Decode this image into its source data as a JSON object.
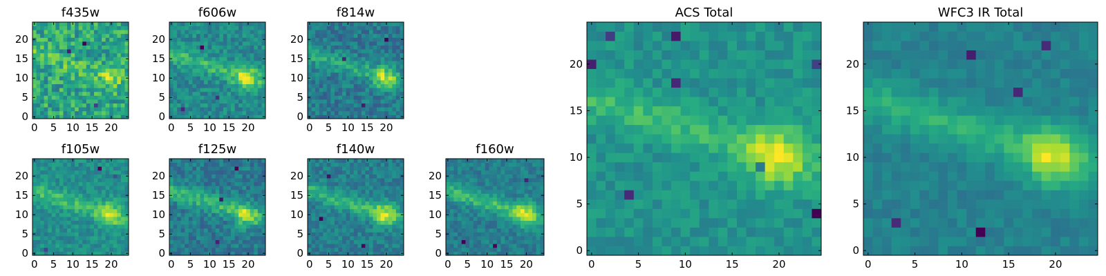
{
  "colormap": "viridis",
  "chart_data": [
    {
      "type": "heatmap",
      "title": "f435w",
      "grid": 25,
      "xticks": [
        0,
        5,
        10,
        15,
        20
      ],
      "yticks": [
        0,
        5,
        10,
        15,
        20
      ],
      "seed": 11,
      "noise": 0.62,
      "band_amp": 0.18,
      "blob_amp": 0.22,
      "hot_pixels": [
        [
          9,
          17,
          -0.9
        ],
        [
          13,
          19,
          -0.7
        ],
        [
          16,
          3,
          -0.6
        ]
      ]
    },
    {
      "type": "heatmap",
      "title": "f606w",
      "grid": 25,
      "xticks": [
        0,
        5,
        10,
        15,
        20
      ],
      "yticks": [
        0,
        5,
        10,
        15,
        20
      ],
      "seed": 23,
      "noise": 0.42,
      "band_amp": 0.35,
      "blob_amp": 0.55,
      "hot_pixels": [
        [
          8,
          18,
          -0.8
        ],
        [
          12,
          5,
          -0.6
        ],
        [
          3,
          2,
          -0.6
        ]
      ]
    },
    {
      "type": "heatmap",
      "title": "f814w",
      "grid": 25,
      "xticks": [
        0,
        5,
        10,
        15,
        20
      ],
      "yticks": [
        0,
        5,
        10,
        15,
        20
      ],
      "seed": 37,
      "noise": 0.42,
      "band_amp": 0.32,
      "blob_amp": 0.62,
      "hot_pixels": [
        [
          9,
          15,
          -0.7
        ],
        [
          14,
          3,
          -0.6
        ],
        [
          20,
          20,
          -0.5
        ]
      ]
    },
    {
      "type": "heatmap",
      "title": "f105w",
      "grid": 25,
      "xticks": [
        0,
        5,
        10,
        15,
        20
      ],
      "yticks": [
        0,
        5,
        10,
        15,
        20
      ],
      "seed": 41,
      "noise": 0.4,
      "band_amp": 0.38,
      "blob_amp": 0.6,
      "hot_pixels": [
        [
          17,
          22,
          -0.8
        ],
        [
          21,
          20,
          -0.6
        ],
        [
          3,
          1,
          -0.6
        ]
      ]
    },
    {
      "type": "heatmap",
      "title": "f125w",
      "grid": 25,
      "xticks": [
        0,
        5,
        10,
        15,
        20
      ],
      "yticks": [
        0,
        5,
        10,
        15,
        20
      ],
      "seed": 53,
      "noise": 0.4,
      "band_amp": 0.45,
      "blob_amp": 0.58,
      "hot_pixels": [
        [
          13,
          14,
          -1.0
        ],
        [
          17,
          22,
          -0.8
        ],
        [
          12,
          3,
          -0.6
        ]
      ]
    },
    {
      "type": "heatmap",
      "title": "f140w",
      "grid": 25,
      "xticks": [
        0,
        5,
        10,
        15,
        20
      ],
      "yticks": [
        0,
        5,
        10,
        15,
        20
      ],
      "seed": 67,
      "noise": 0.36,
      "band_amp": 0.42,
      "blob_amp": 0.62,
      "hot_pixels": [
        [
          3,
          9,
          -0.8
        ],
        [
          5,
          20,
          -0.6
        ],
        [
          14,
          2,
          -0.6
        ]
      ]
    },
    {
      "type": "heatmap",
      "title": "f160w",
      "grid": 25,
      "xticks": [
        0,
        5,
        10,
        15,
        20
      ],
      "yticks": [
        0,
        5,
        10,
        15,
        20
      ],
      "seed": 79,
      "noise": 0.34,
      "band_amp": 0.45,
      "blob_amp": 0.62,
      "hot_pixels": [
        [
          4,
          3,
          -0.7
        ],
        [
          12,
          2,
          -0.6
        ],
        [
          20,
          19,
          -0.5
        ]
      ]
    },
    {
      "type": "heatmap",
      "title": "ACS Total",
      "grid": 25,
      "xticks": [
        0,
        5,
        10,
        15,
        20
      ],
      "yticks": [
        0,
        5,
        10,
        15,
        20
      ],
      "seed": 97,
      "noise": 0.32,
      "band_amp": 0.32,
      "blob_amp": 0.72,
      "hot_pixels": [
        [
          2,
          23,
          -0.8
        ],
        [
          9,
          23,
          -0.8
        ],
        [
          18,
          9,
          -0.9
        ],
        [
          9,
          18,
          -0.9
        ],
        [
          4,
          6,
          -0.8
        ],
        [
          24,
          4,
          -0.9
        ],
        [
          0,
          20,
          -0.8
        ],
        [
          24,
          20,
          -0.7
        ]
      ]
    },
    {
      "type": "heatmap",
      "title": "WFC3 IR Total",
      "grid": 25,
      "xticks": [
        0,
        5,
        10,
        15,
        20
      ],
      "yticks": [
        0,
        5,
        10,
        15,
        20
      ],
      "seed": 113,
      "noise": 0.22,
      "band_amp": 0.4,
      "blob_amp": 0.75,
      "hot_pixels": [
        [
          11,
          21,
          -0.8
        ],
        [
          12,
          2,
          -0.8
        ],
        [
          3,
          3,
          -0.7
        ],
        [
          16,
          17,
          -0.6
        ],
        [
          19,
          22,
          -0.6
        ]
      ]
    }
  ]
}
